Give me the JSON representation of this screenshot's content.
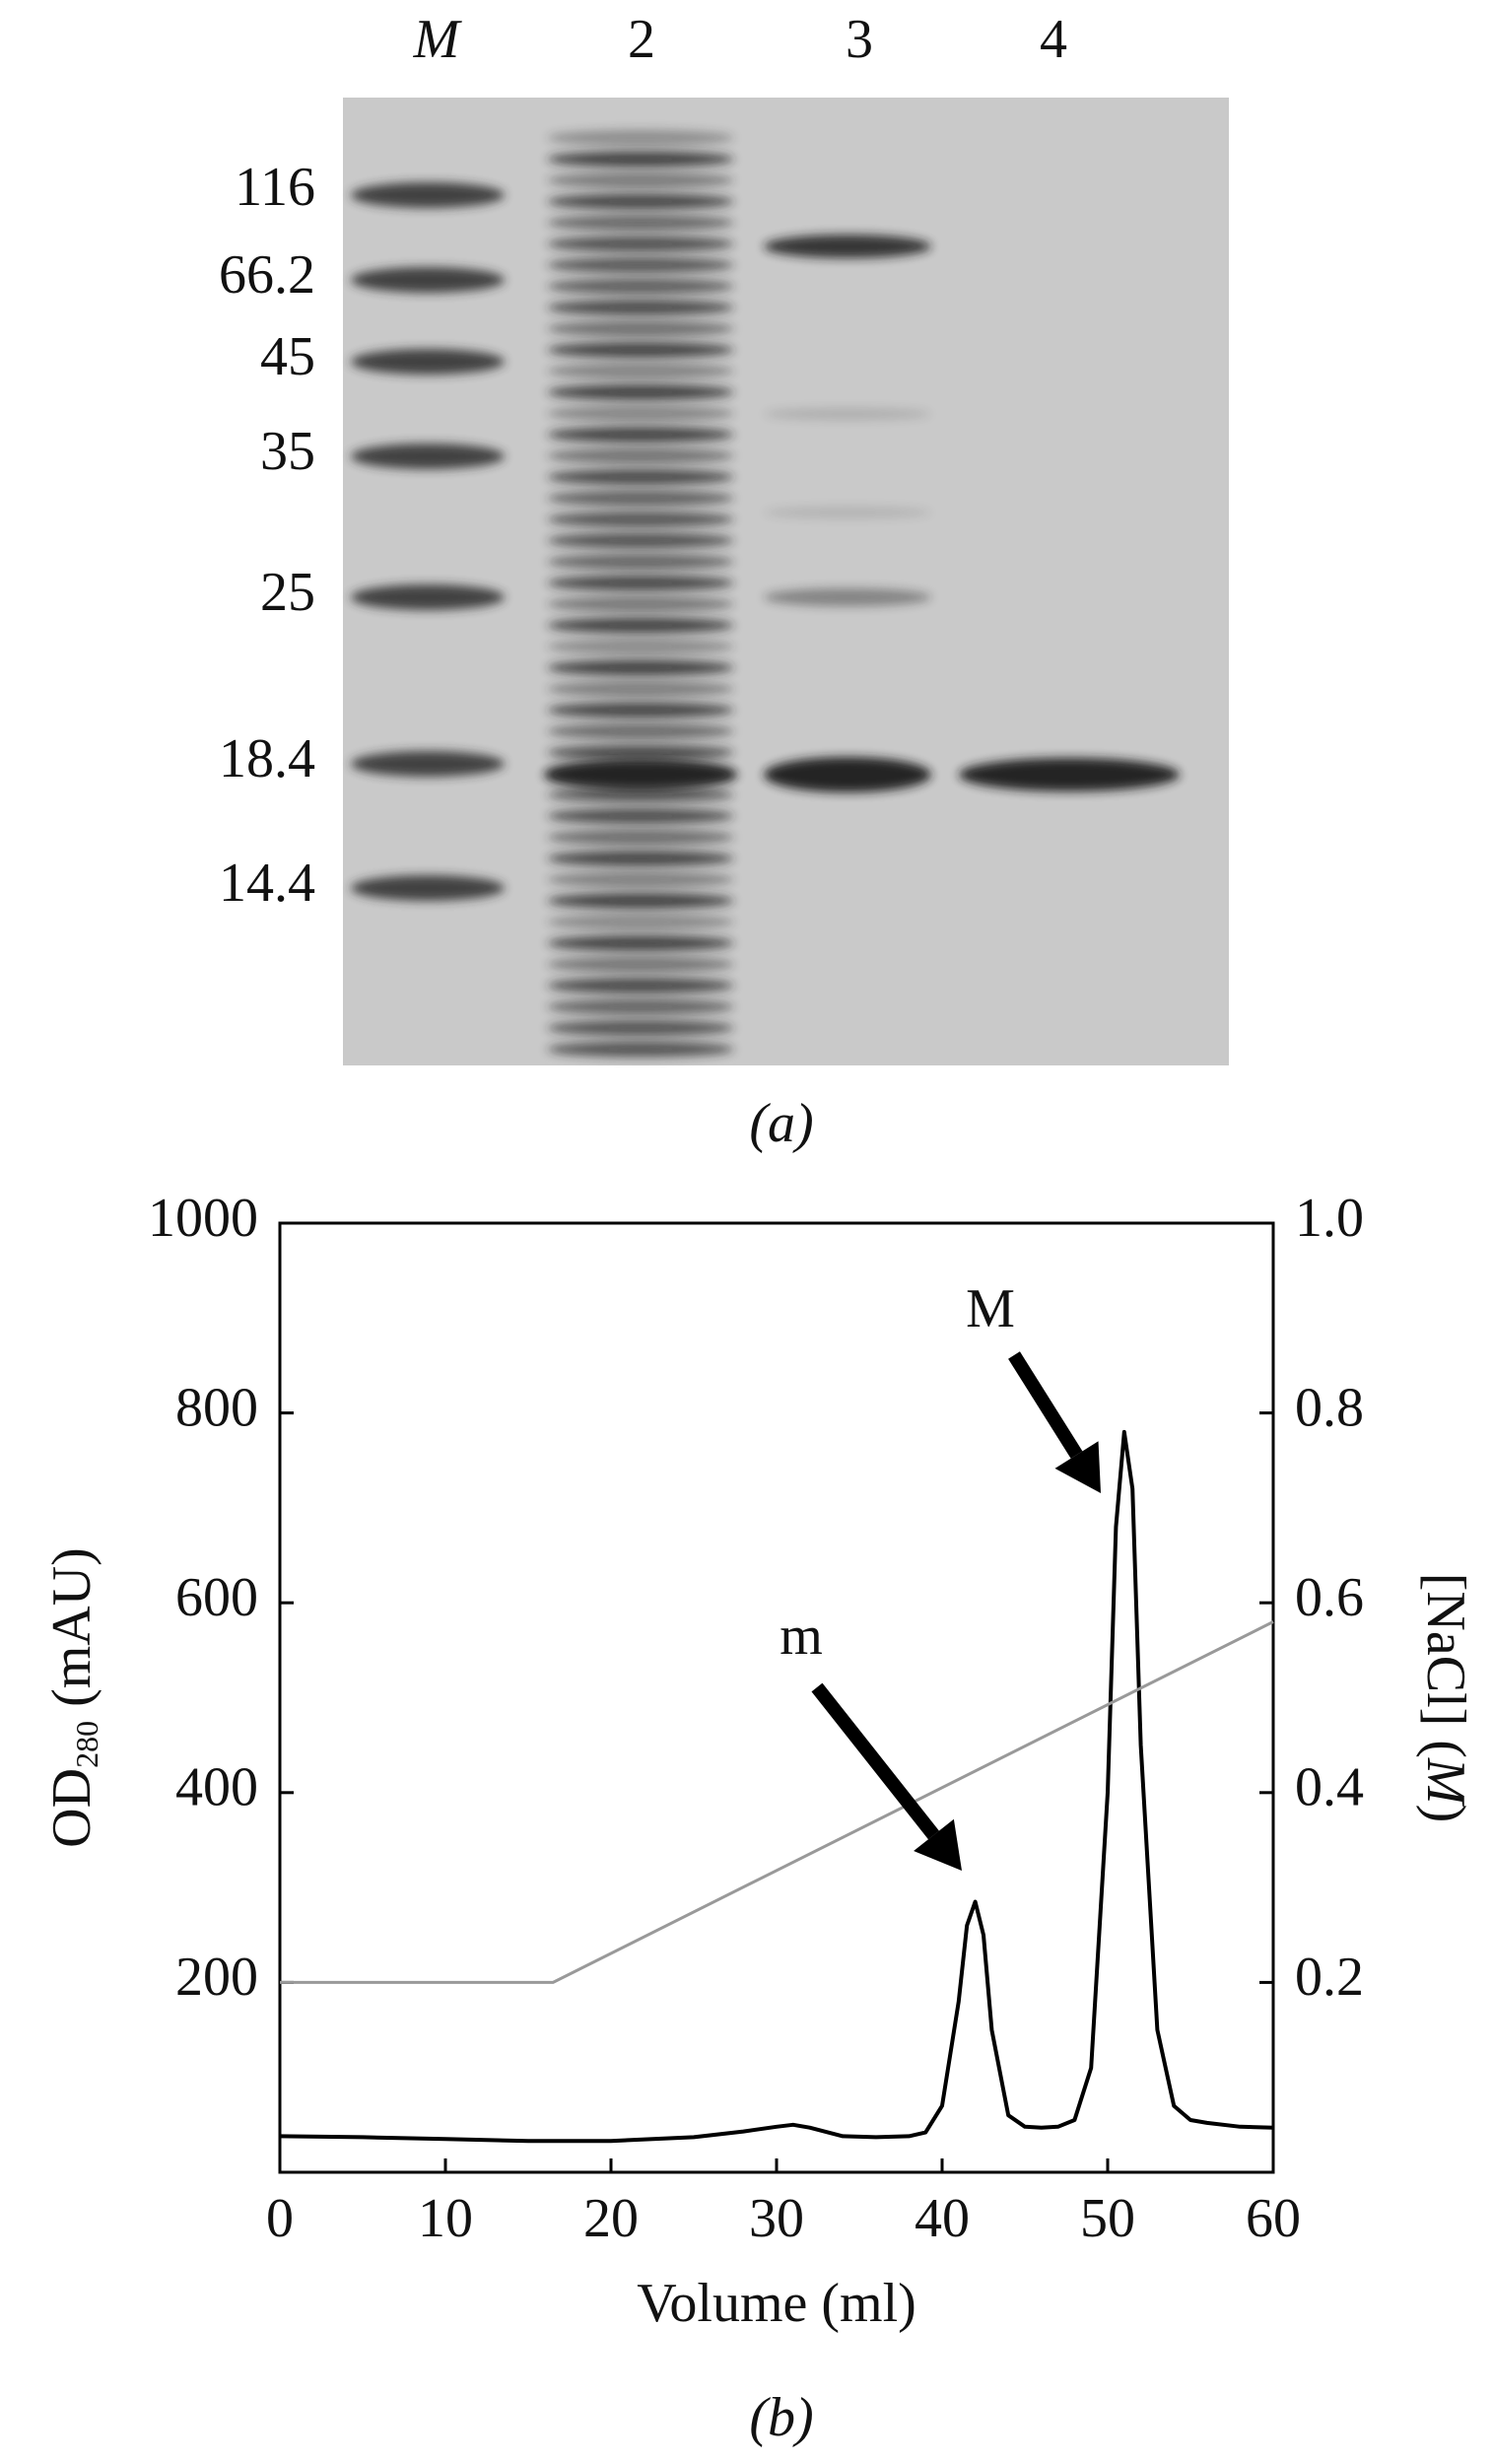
{
  "gel": {
    "lanes": [
      "M",
      "2",
      "3",
      "4"
    ],
    "markers": [
      "116",
      "66.2",
      "45",
      "35",
      "25",
      "18.4",
      "14.4"
    ],
    "caption": "(a)"
  },
  "chart_data": {
    "type": "line",
    "caption": "(b)",
    "x_label": "Volume (ml)",
    "y_label": [
      "OD",
      "280",
      " (mAU)"
    ],
    "y2_label": [
      "[NaCl] (",
      "M",
      ")"
    ],
    "xlim": [
      0,
      60
    ],
    "xticks": [
      0,
      10,
      20,
      30,
      40,
      50,
      60
    ],
    "ylim": [
      0,
      1000
    ],
    "yticks": [
      200,
      400,
      600,
      800,
      1000
    ],
    "y2lim": [
      0,
      1
    ],
    "y2ticks": [
      0.2,
      0.4,
      0.6,
      0.8,
      {
        "value": 1,
        "label": "1.0"
      }
    ],
    "annotations": [
      "m",
      "M"
    ],
    "series": [
      {
        "name": "OD280",
        "color": "#000000",
        "x": [
          0,
          5,
          10,
          15,
          20,
          25,
          28,
          30,
          31,
          32,
          34,
          36,
          38,
          39,
          40,
          41,
          41.5,
          42,
          42.5,
          43,
          44,
          45,
          46,
          47,
          48,
          49,
          50,
          50.5,
          51,
          51.5,
          52,
          53,
          54,
          55,
          56,
          58,
          60
        ],
        "values": [
          38,
          37,
          35,
          33,
          33,
          37,
          43,
          48,
          50,
          47,
          38,
          37,
          38,
          42,
          70,
          180,
          260,
          285,
          250,
          150,
          60,
          48,
          47,
          48,
          55,
          110,
          400,
          680,
          780,
          720,
          450,
          150,
          70,
          55,
          52,
          48,
          47
        ]
      },
      {
        "name": "[NaCl]",
        "color": "#999999",
        "axis": "y2",
        "x": [
          0,
          16.5,
          60
        ],
        "values": [
          0.2,
          0.2,
          0.58
        ]
      }
    ]
  }
}
